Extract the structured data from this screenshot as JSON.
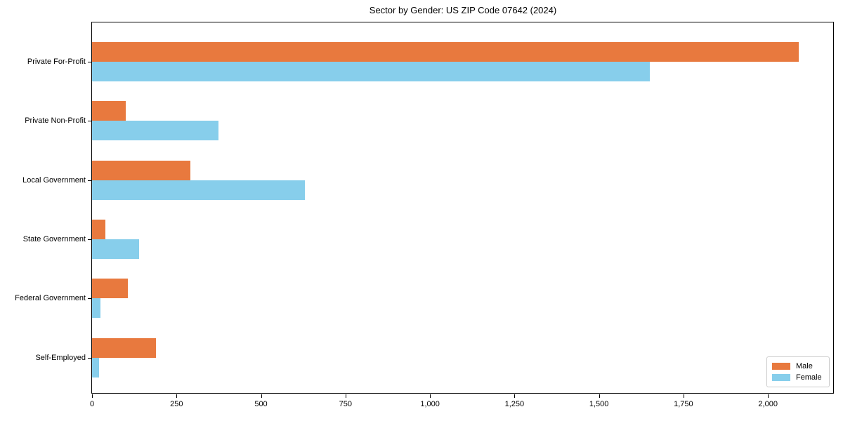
{
  "chart_data": {
    "type": "bar",
    "orientation": "horizontal",
    "title": "Sector by Gender: US ZIP Code 07642 (2024)",
    "categories": [
      "Private For-Profit",
      "Private Non-Profit",
      "Local Government",
      "State Government",
      "Federal Government",
      "Self-Employed"
    ],
    "series": [
      {
        "name": "Male",
        "color": "#e8793e",
        "values": [
          2090,
          100,
          290,
          40,
          105,
          190
        ]
      },
      {
        "name": "Female",
        "color": "#87ceeb",
        "values": [
          1650,
          375,
          630,
          140,
          25,
          20
        ]
      }
    ],
    "xlabel": "",
    "ylabel": "",
    "xlim": [
      0,
      2195
    ],
    "x_ticks": [
      0,
      250,
      500,
      750,
      1000,
      1250,
      1500,
      1750,
      2000
    ],
    "x_tick_labels": [
      "0",
      "250",
      "500",
      "750",
      "1,000",
      "1,250",
      "1,500",
      "1,750",
      "2,000"
    ],
    "legend": {
      "position": "lower right",
      "entries": [
        "Male",
        "Female"
      ]
    },
    "grid": false,
    "background": "#ffffff"
  }
}
